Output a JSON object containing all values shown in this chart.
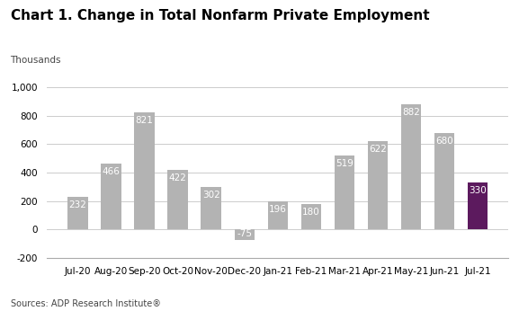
{
  "title": "Chart 1. Change in Total Nonfarm Private Employment",
  "ylabel": "Thousands",
  "source": "Sources: ADP Research Institute®",
  "categories": [
    "Jul-20",
    "Aug-20",
    "Sep-20",
    "Oct-20",
    "Nov-20",
    "Dec-20",
    "Jan-21",
    "Feb-21",
    "Mar-21",
    "Apr-21",
    "May-21",
    "Jun-21",
    "Jul-21"
  ],
  "values": [
    232,
    466,
    821,
    422,
    302,
    -75,
    196,
    180,
    519,
    622,
    882,
    680,
    330
  ],
  "bar_colors": [
    "#b3b3b3",
    "#b3b3b3",
    "#b3b3b3",
    "#b3b3b3",
    "#b3b3b3",
    "#b3b3b3",
    "#b3b3b3",
    "#b3b3b3",
    "#b3b3b3",
    "#b3b3b3",
    "#b3b3b3",
    "#b3b3b3",
    "#5c1a5e"
  ],
  "ylim": [
    -200,
    1000
  ],
  "yticks": [
    -200,
    0,
    200,
    400,
    600,
    800,
    1000
  ],
  "ytick_labels": [
    "-200",
    "0",
    "200",
    "400",
    "600",
    "800",
    "1,000"
  ],
  "background_color": "#ffffff",
  "grid_color": "#cccccc",
  "title_fontsize": 11,
  "label_fontsize": 7.5,
  "tick_fontsize": 7.5,
  "source_fontsize": 7,
  "thousands_fontsize": 7.5,
  "bar_width": 0.6
}
